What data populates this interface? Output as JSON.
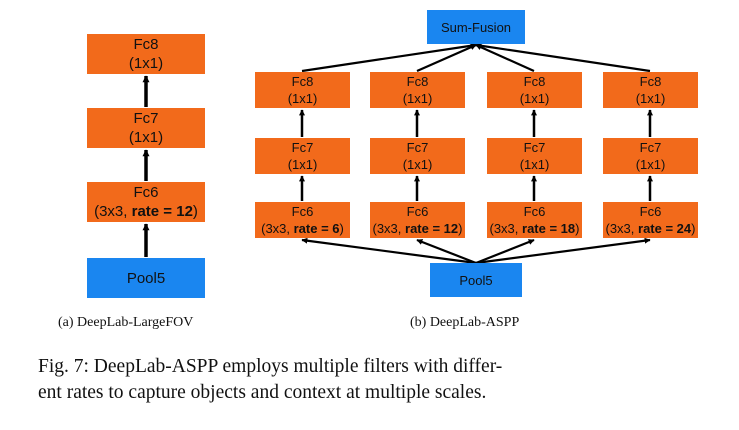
{
  "left": {
    "fc8": {
      "name": "Fc8",
      "kernel": "(1x1)"
    },
    "fc7": {
      "name": "Fc7",
      "kernel": "(1x1)"
    },
    "fc6": {
      "name": "Fc6",
      "kernel_prefix": "(3x3, ",
      "rate": "rate = 12",
      "kernel_suffix": ")"
    },
    "pool": "Pool5",
    "caption": "(a) DeepLab-LargeFOV"
  },
  "right": {
    "fusion": "Sum-Fusion",
    "branches": [
      {
        "fc8": "Fc8",
        "fc8_kernel": "(1x1)",
        "fc7": "Fc7",
        "fc7_kernel": "(1x1)",
        "fc6": "Fc6",
        "fc6_prefix": "(3x3, ",
        "rate": "rate = 6",
        "fc6_suffix": ")"
      },
      {
        "fc8": "Fc8",
        "fc8_kernel": "(1x1)",
        "fc7": "Fc7",
        "fc7_kernel": "(1x1)",
        "fc6": "Fc6",
        "fc6_prefix": "(3x3, ",
        "rate": "rate = 12",
        "fc6_suffix": ")"
      },
      {
        "fc8": "Fc8",
        "fc8_kernel": "(1x1)",
        "fc7": "Fc7",
        "fc7_kernel": "(1x1)",
        "fc6": "Fc6",
        "fc6_prefix": "(3x3, ",
        "rate": "rate = 18",
        "fc6_suffix": ")"
      },
      {
        "fc8": "Fc8",
        "fc8_kernel": "(1x1)",
        "fc7": "Fc7",
        "fc7_kernel": "(1x1)",
        "fc6": "Fc6",
        "fc6_prefix": "(3x3, ",
        "rate": "rate = 24",
        "fc6_suffix": ")"
      }
    ],
    "pool": "Pool5",
    "caption": "(b) DeepLab-ASPP"
  },
  "figure_caption": {
    "line1": "Fig. 7: DeepLab-ASPP employs multiple filters with differ-",
    "line2": "ent rates to capture objects and context at multiple scales."
  },
  "colors": {
    "layer": "#f26a1b",
    "pool_and_fusion": "#1a86f0",
    "arrow": "#000000"
  }
}
